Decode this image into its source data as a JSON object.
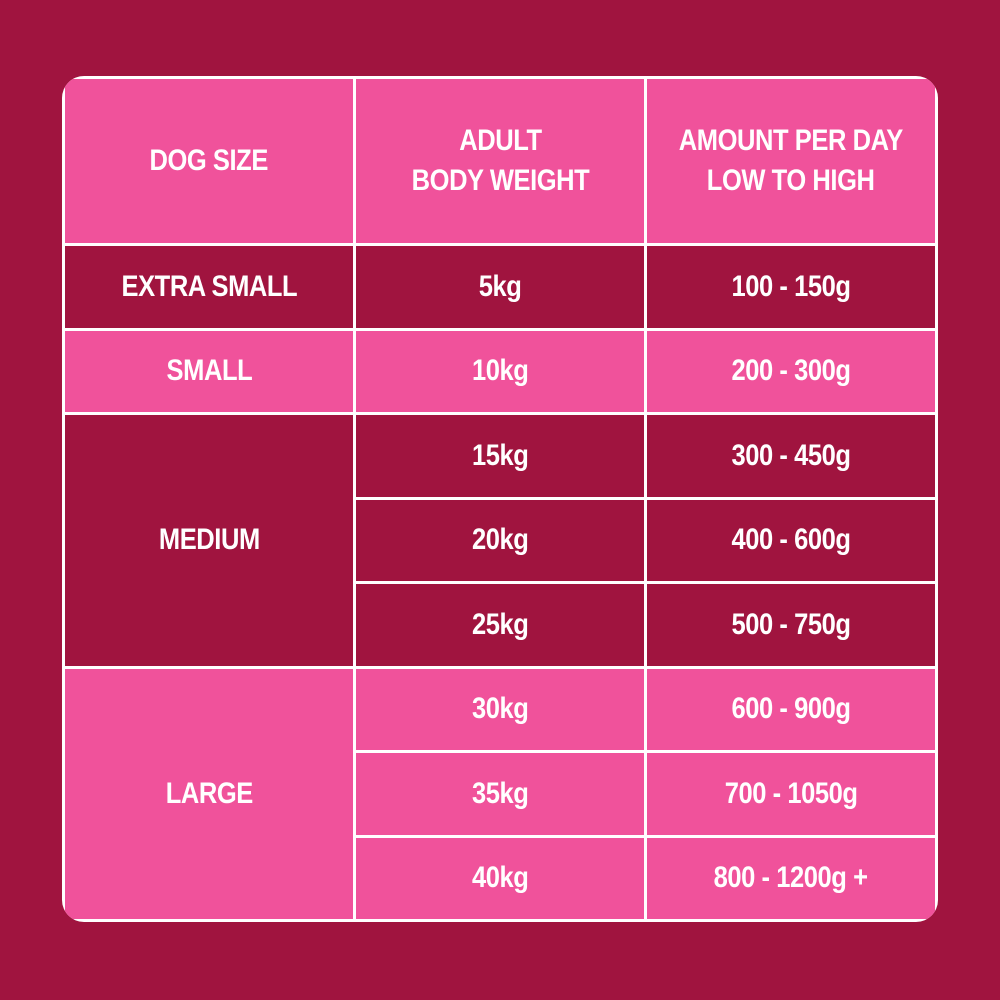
{
  "header": {
    "columns": [
      {
        "lines": [
          "DOG SIZE"
        ]
      },
      {
        "lines": [
          "ADULT",
          "BODY WEIGHT"
        ]
      },
      {
        "lines": [
          "AMOUNT PER DAY",
          "LOW TO HIGH"
        ]
      }
    ]
  },
  "groups": [
    {
      "size": "EXTRA SMALL",
      "rows": [
        {
          "weight": "5kg",
          "amount": "100 - 150g"
        }
      ]
    },
    {
      "size": "SMALL",
      "rows": [
        {
          "weight": "10kg",
          "amount": "200 - 300g"
        }
      ]
    },
    {
      "size": "MEDIUM",
      "rows": [
        {
          "weight": "15kg",
          "amount": "300 - 450g"
        },
        {
          "weight": "20kg",
          "amount": "400 - 600g"
        },
        {
          "weight": "25kg",
          "amount": "500 - 750g"
        }
      ]
    },
    {
      "size": "LARGE",
      "rows": [
        {
          "weight": "30kg",
          "amount": "600 - 900g"
        },
        {
          "weight": "35kg",
          "amount": "700 - 1050g"
        },
        {
          "weight": "40kg",
          "amount": "800 - 1200g +"
        }
      ]
    }
  ]
}
